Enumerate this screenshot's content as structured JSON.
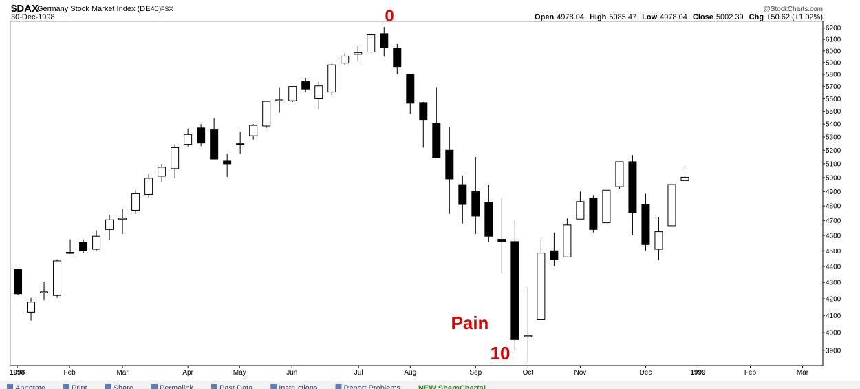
{
  "chart_data": {
    "type": "candlestick",
    "symbol": "$DAX",
    "title": "Germany Stock Market Index (DE40)",
    "exchange": "FSX",
    "date": "30-Dec-1998",
    "source": "@StockCharts.com",
    "info": [
      {
        "label": "Open",
        "value": "4978.04"
      },
      {
        "label": "High",
        "value": "5085.47"
      },
      {
        "label": "Low",
        "value": "4978.04"
      },
      {
        "label": "Close",
        "value": "5002.39"
      },
      {
        "label": "Chg",
        "value": "+50.62 (+1.02%)"
      }
    ],
    "annotations": [
      {
        "text": "0",
        "color": "#e00000"
      },
      {
        "text": "Pain",
        "color": "#e00000"
      },
      {
        "text": "10",
        "color": "#e00000"
      }
    ],
    "x": [
      0,
      1,
      2,
      3,
      4,
      5,
      6,
      7,
      8,
      9,
      10,
      11,
      12,
      13,
      14,
      15,
      16,
      17,
      18,
      19,
      20,
      21,
      22,
      23,
      24,
      25,
      26,
      27,
      28,
      29,
      30,
      31,
      32,
      33,
      34,
      35,
      36,
      37,
      38,
      39,
      40,
      41,
      42,
      43,
      44,
      45,
      46,
      47,
      48,
      49,
      50,
      51
    ],
    "open": [
      4380,
      4120,
      4238,
      4220,
      4485,
      4555,
      4510,
      4640,
      4713,
      4770,
      4880,
      5010,
      5065,
      5245,
      5370,
      5355,
      5120,
      5250,
      5310,
      5385,
      5588,
      5585,
      5740,
      5600,
      5655,
      5895,
      5970,
      5990,
      6150,
      6025,
      5800,
      5570,
      5405,
      5200,
      4950,
      4900,
      4825,
      4575,
      4560,
      3978,
      4075,
      4500,
      4460,
      4710,
      4855,
      4685,
      4935,
      5115,
      4810,
      4510,
      4665,
      4978.04
    ],
    "high": [
      4385,
      4205,
      4305,
      4445,
      4575,
      4575,
      4635,
      4740,
      4780,
      4910,
      5025,
      5100,
      5245,
      5365,
      5400,
      5445,
      5175,
      5340,
      5400,
      5580,
      5690,
      5700,
      5770,
      5740,
      5890,
      5980,
      6040,
      6150,
      6210,
      6060,
      5800,
      5575,
      5690,
      5380,
      5015,
      5150,
      4950,
      4860,
      4700,
      4270,
      4570,
      4620,
      4715,
      4900,
      4875,
      4910,
      5115,
      5165,
      4885,
      4725,
      4950,
      5085.47
    ],
    "low": [
      4220,
      4070,
      4190,
      4205,
      4480,
      4485,
      4500,
      4570,
      4610,
      4745,
      4860,
      4970,
      4995,
      5230,
      5230,
      5135,
      5005,
      5175,
      5280,
      5370,
      5490,
      5575,
      5655,
      5520,
      5630,
      5880,
      5910,
      5985,
      5950,
      5800,
      5480,
      5220,
      5145,
      4745,
      4680,
      4610,
      4555,
      4355,
      3900,
      3835,
      4075,
      4400,
      4460,
      4710,
      4620,
      4685,
      4920,
      4605,
      4500,
      4440,
      4665,
      4978.04
    ],
    "close": [
      4230,
      4180,
      4242,
      4435,
      4490,
      4500,
      4595,
      4705,
      4717,
      4885,
      4995,
      5075,
      5220,
      5320,
      5255,
      5135,
      5100,
      5245,
      5390,
      5580,
      5592,
      5700,
      5680,
      5705,
      5880,
      5955,
      5985,
      6140,
      6030,
      5860,
      5565,
      5430,
      5145,
      4990,
      4810,
      4730,
      4595,
      4560,
      3960,
      3982,
      4485,
      4445,
      4670,
      4830,
      4640,
      4910,
      5115,
      4755,
      4540,
      4625,
      4950,
      5002.39
    ],
    "colors": {
      "up": "#ffffff",
      "down": "#000000",
      "edge": "#000000"
    },
    "log_scale": true,
    "xlim": [
      -0.58,
      61.55
    ],
    "ylim": [
      3815,
      6260
    ],
    "xticks": [
      {
        "value": -0.05,
        "label": "1998"
      },
      {
        "value": 3.95,
        "label": "Feb"
      },
      {
        "value": 8.0,
        "label": "Mar"
      },
      {
        "value": 13.0,
        "label": "Apr"
      },
      {
        "value": 16.95,
        "label": "May"
      },
      {
        "value": 20.95,
        "label": "Jun"
      },
      {
        "value": 26.05,
        "label": "Jul"
      },
      {
        "value": 30.0,
        "label": "Aug"
      },
      {
        "value": 35.0,
        "label": "Sep"
      },
      {
        "value": 39.0,
        "label": "Oct"
      },
      {
        "value": 43.0,
        "label": "Nov"
      },
      {
        "value": 48.0,
        "label": "Dec"
      },
      {
        "value": 52.0,
        "label": "1999"
      },
      {
        "value": 56.0,
        "label": "Feb"
      },
      {
        "value": 60.0,
        "label": "Mar"
      }
    ],
    "yticks": [
      3900,
      4000,
      4100,
      4200,
      4300,
      4400,
      4500,
      4600,
      4700,
      4800,
      4900,
      5000,
      5100,
      5200,
      5300,
      5400,
      5500,
      5600,
      5700,
      5800,
      5900,
      6000,
      6100,
      6200
    ],
    "grid": false
  },
  "toolbar": {
    "items": [
      "Annotate",
      "Print",
      "Share",
      "Permalink",
      "Past Data",
      "Instructions",
      "Report Problems",
      "NEW SharpCharts!"
    ]
  }
}
